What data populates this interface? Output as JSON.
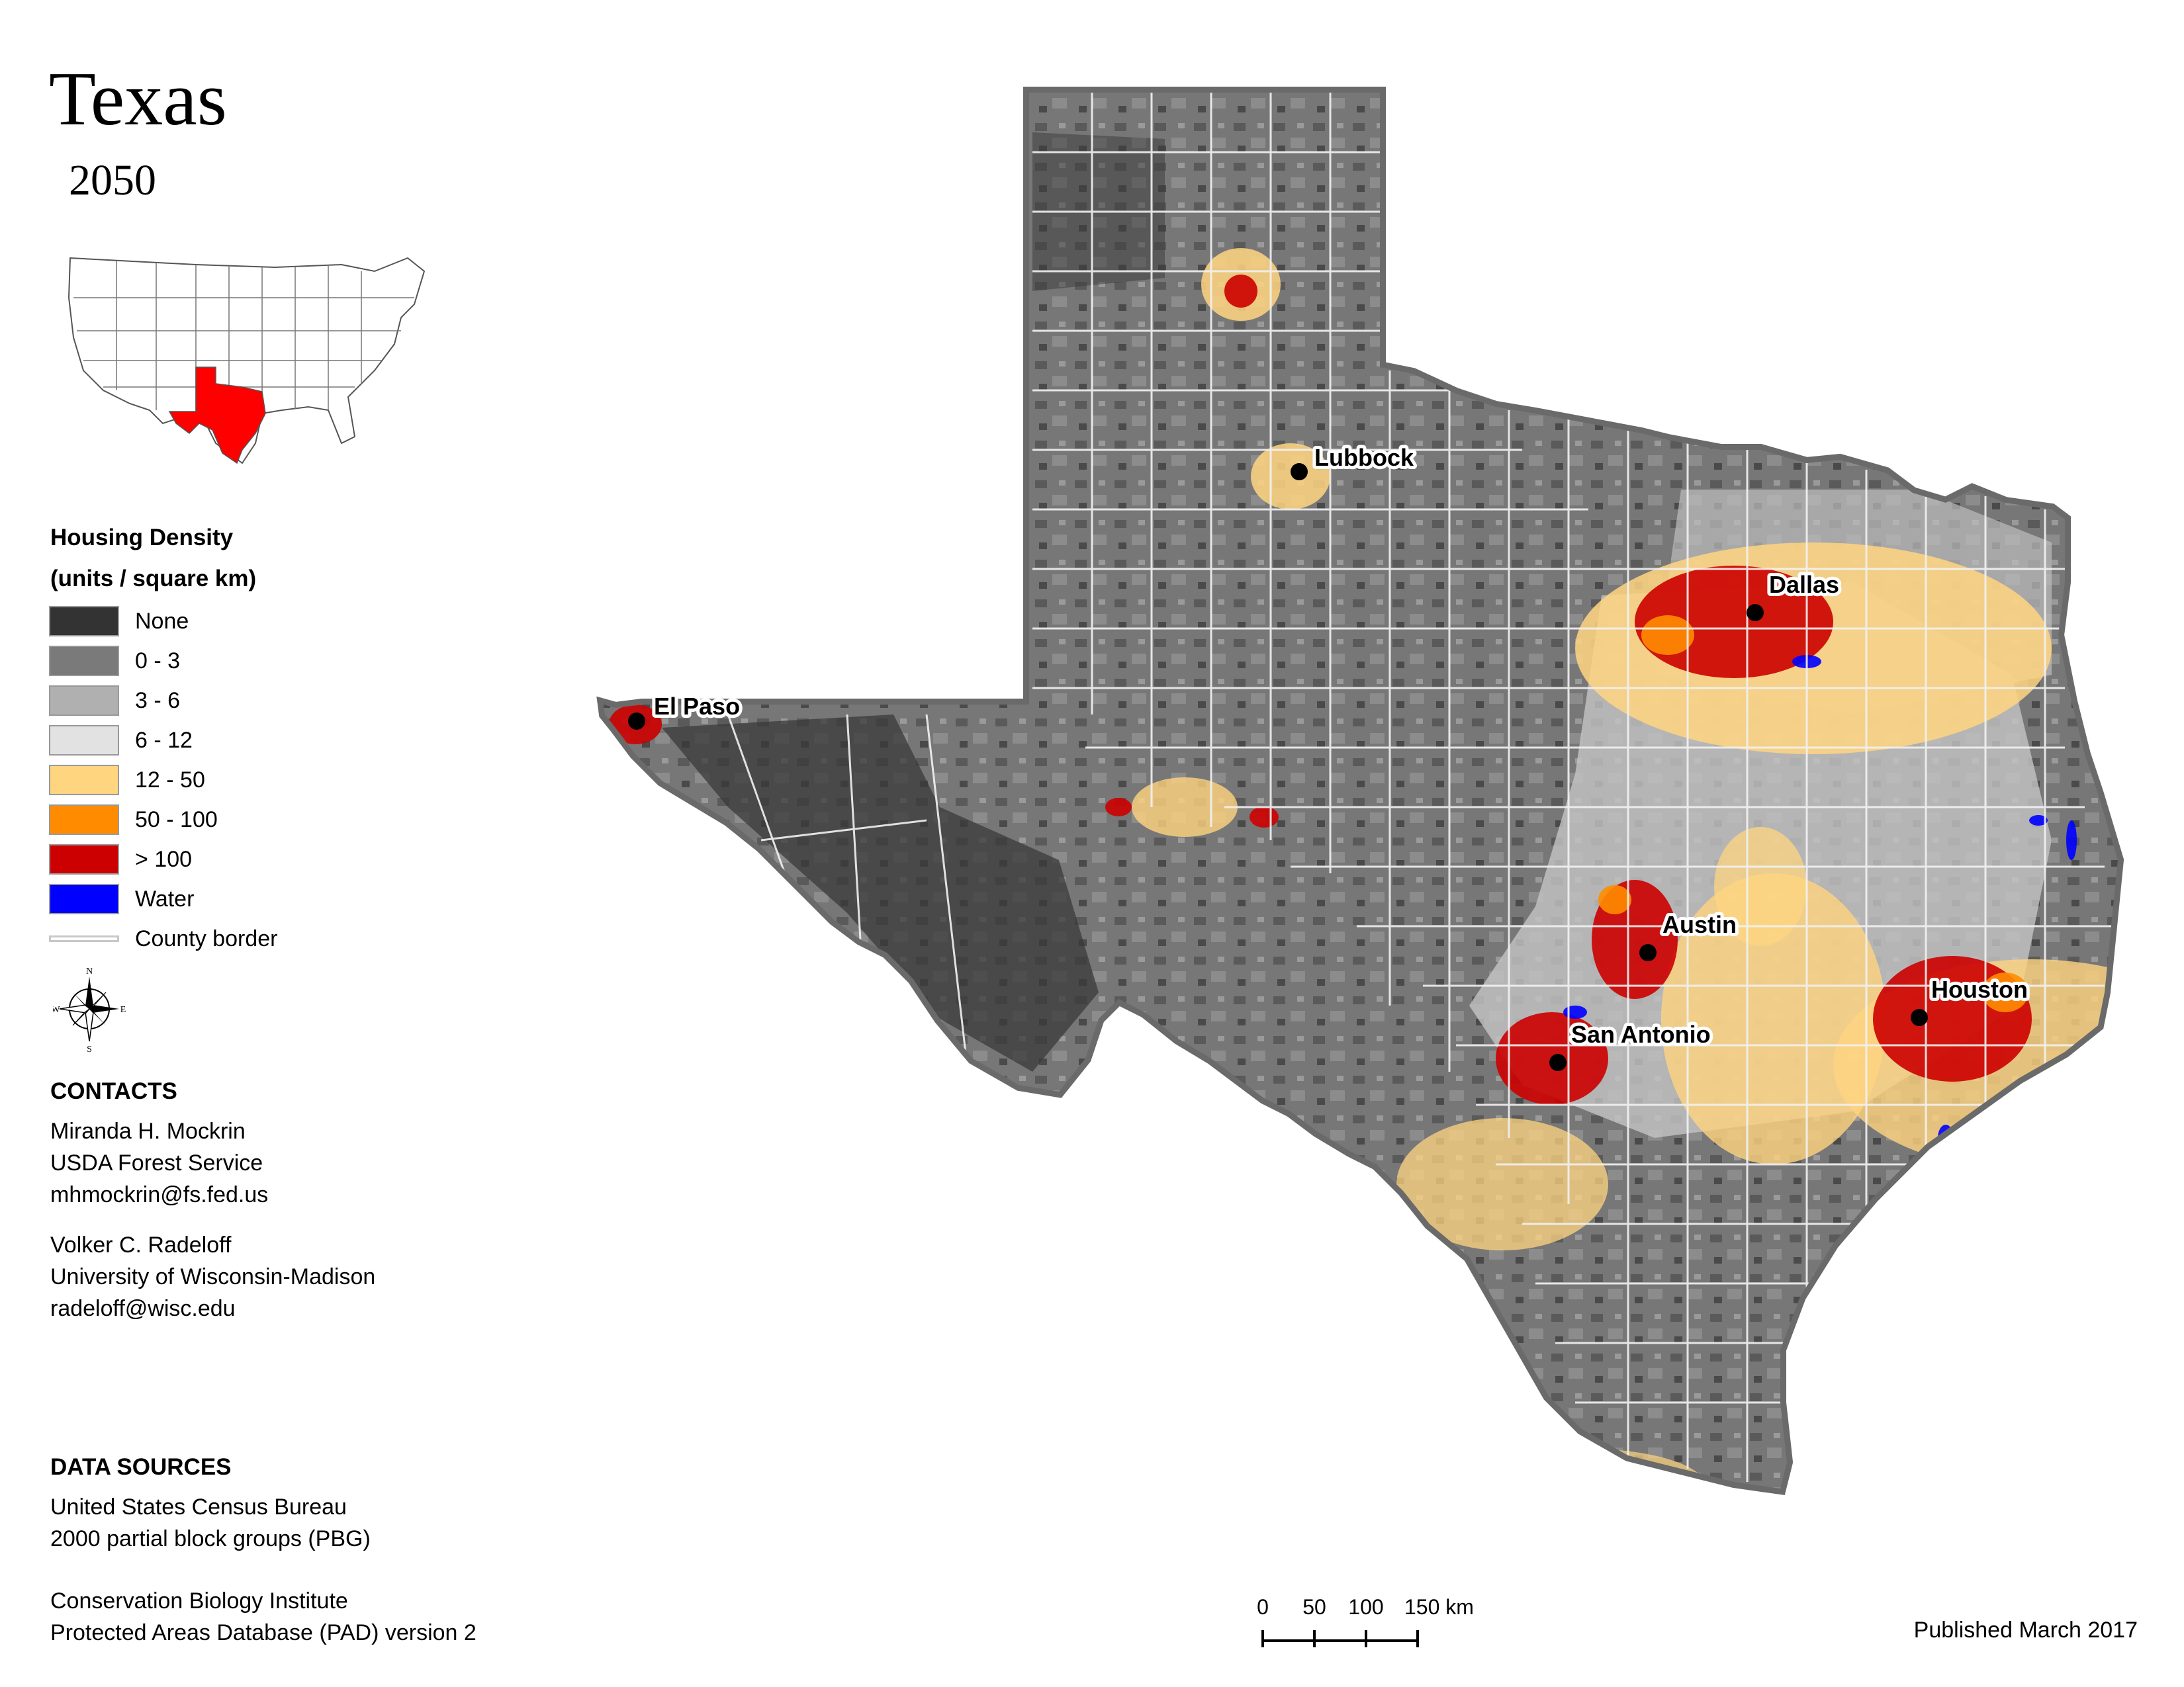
{
  "title": "Texas",
  "year": "2050",
  "legend": {
    "title_line1": "Housing Density",
    "title_line2": "(units / square km)",
    "items": [
      {
        "label": "None",
        "color": "#333333"
      },
      {
        "label": "0 - 3",
        "color": "#7a7a7a"
      },
      {
        "label": "3 - 6",
        "color": "#b0b0b0"
      },
      {
        "label": "6 - 12",
        "color": "#e2e2e2"
      },
      {
        "label": "12 - 50",
        "color": "#ffd580"
      },
      {
        "label": "50 - 100",
        "color": "#ff8c00"
      },
      {
        "label": "> 100",
        "color": "#cc0000"
      },
      {
        "label": "Water",
        "color": "#0000ff"
      }
    ],
    "county_border_label": "County border"
  },
  "compass": {
    "n": "N",
    "s": "S",
    "e": "E",
    "w": "W"
  },
  "contacts": {
    "heading": "CONTACTS",
    "person1": {
      "name": "Miranda H. Mockrin",
      "org": "USDA Forest Service",
      "email": "mhmockrin@fs.fed.us"
    },
    "person2": {
      "name": "Volker C. Radeloff",
      "org": "University of Wisconsin-Madison",
      "email": "radeloff@wisc.edu"
    }
  },
  "data_sources": {
    "heading": "DATA SOURCES",
    "source1_line1": "United States Census Bureau",
    "source1_line2": "2000 partial block groups (PBG)",
    "source2_line1": "Conservation Biology Institute",
    "source2_line2": "Protected Areas Database (PAD) version 2"
  },
  "cities": {
    "lubbock": "Lubbock",
    "el_paso": "El Paso",
    "dallas": "Dallas",
    "austin": "Austin",
    "san_antonio": "San Antonio",
    "houston": "Houston"
  },
  "scale_bar": {
    "ticks": [
      "0",
      "50",
      "100",
      "150 km"
    ]
  },
  "published": "Published March 2017"
}
